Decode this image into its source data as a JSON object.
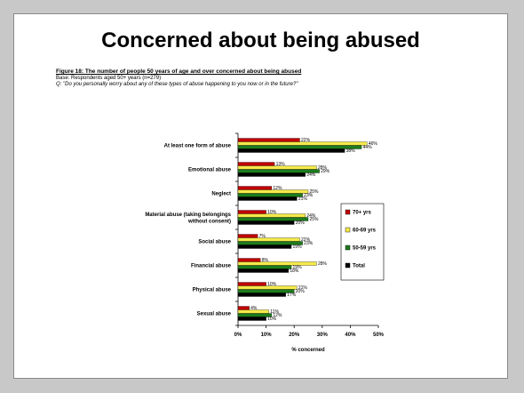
{
  "slide": {
    "title": "Concerned about being abused",
    "figure_caption": "Figure 18: The number of people 50 years of age and over concerned about being abused",
    "base_note": "Base: Respondents aged 50+ years (n=279)",
    "question_note": "Q: \"Do you personally worry about any of these types of abuse happening to you now or in the future?\""
  },
  "chart_data": {
    "type": "bar",
    "orientation": "horizontal",
    "categories": [
      [
        "At least one form of abuse"
      ],
      [
        "Emotional abuse"
      ],
      [
        "Neglect"
      ],
      [
        "Material abuse (taking belongings",
        "without consent)"
      ],
      [
        "Social abuse"
      ],
      [
        "Financial abuse"
      ],
      [
        "Physical abuse"
      ],
      [
        "Sexual abuse"
      ]
    ],
    "series": [
      {
        "name": "70+ yrs",
        "color": "#c00000",
        "values": [
          22,
          13,
          12,
          10,
          7,
          8,
          10,
          4
        ]
      },
      {
        "name": "60-69 yrs",
        "color": "#f5e94a",
        "values": [
          46,
          28,
          25,
          24,
          22,
          28,
          21,
          11
        ]
      },
      {
        "name": "50-59 yrs",
        "color": "#1d7a1d",
        "values": [
          44,
          29,
          23,
          25,
          23,
          19,
          20,
          12
        ]
      },
      {
        "name": "Total",
        "color": "#000000",
        "values": [
          38,
          24,
          21,
          20,
          19,
          18,
          17,
          10
        ]
      }
    ],
    "xlabel": "% concerned",
    "ylabel": "",
    "xlim": [
      0,
      50
    ],
    "xticks": [
      "0%",
      "10%",
      "20%",
      "30%",
      "40%",
      "50%"
    ],
    "value_suffix": "%",
    "legend_position": "right",
    "grid": false
  }
}
